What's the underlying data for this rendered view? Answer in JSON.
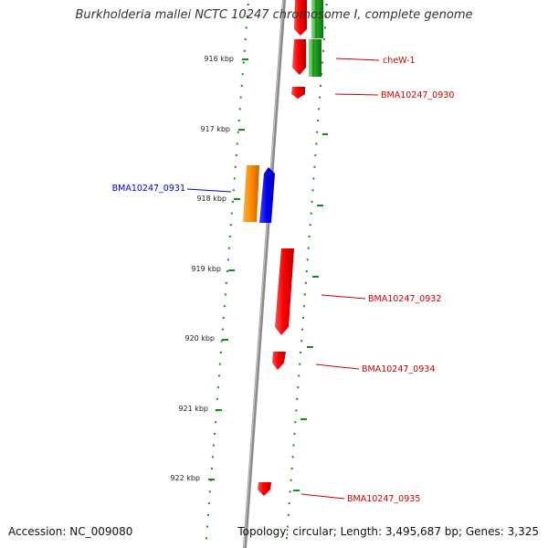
{
  "header": {
    "title": "Burkholderia mallei NCTC 10247 chromosome I, complete genome"
  },
  "footer": {
    "accession": "Accession: NC_009080",
    "topology": "Topology: circular; Length: 3,495,687 bp; Genes: 3,325"
  },
  "colors": {
    "backbone": "#888888",
    "tick": "#138d13",
    "gene_red": "#e00000",
    "gene_green": "#2aa02a",
    "gene_orange": "#ff8c00",
    "gene_blue": "#0000e0",
    "label_red": "#cc0000",
    "label_blue": "#0000cc"
  },
  "axis": {
    "unit": "kbp",
    "ticks": [
      "916 kbp",
      "917 kbp",
      "918 kbp",
      "919 kbp",
      "920 kbp",
      "921 kbp",
      "922 kbp"
    ]
  },
  "genes": [
    {
      "label": "cheW-1",
      "color": "red"
    },
    {
      "label": "BMA10247_0930",
      "color": "red"
    },
    {
      "label": "BMA10247_0931",
      "color": "blue"
    },
    {
      "label": "BMA10247_0932",
      "color": "red"
    },
    {
      "label": "BMA10247_0934",
      "color": "red"
    },
    {
      "label": "BMA10247_0935",
      "color": "red"
    }
  ]
}
